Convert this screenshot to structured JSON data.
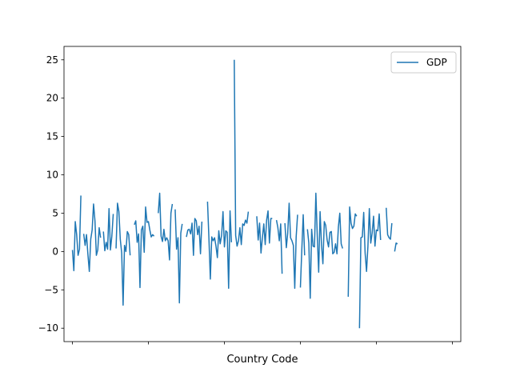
{
  "chart_data": {
    "type": "line",
    "title": "",
    "xlabel": "Country Code",
    "ylabel": "",
    "xlim": [
      -6,
      276
    ],
    "ylim": [
      -11.75,
      26.75
    ],
    "yticks": [
      -10,
      -5,
      0,
      5,
      10,
      15,
      20,
      25
    ],
    "xticks_unlabeled": [
      0,
      54,
      108,
      162,
      216,
      270
    ],
    "grid": false,
    "legend": {
      "placement": "top-right",
      "entries": [
        "GDP"
      ]
    },
    "series": [
      {
        "name": "GDP",
        "color": "#1f77b4",
        "values": [
          0.2,
          -2.5,
          3.9,
          2.2,
          -0.5,
          0.3,
          7.3,
          null,
          2.3,
          0.8,
          2.2,
          -0.4,
          -2.6,
          1.6,
          2.8,
          6.2,
          4.0,
          -0.5,
          0.2,
          3.1,
          1.8,
          null,
          2.6,
          0.1,
          1.2,
          0.3,
          5.6,
          0.2,
          2.0,
          4.9,
          null,
          0.4,
          6.3,
          5.2,
          1.6,
          -0.2,
          -7.0,
          0.8,
          0.0,
          2.6,
          2.2,
          -0.5,
          null,
          null,
          3.5,
          4.0,
          1.2,
          2.3,
          -4.7,
          2.8,
          3.3,
          -0.1,
          5.8,
          3.8,
          3.9,
          2.8,
          1.9,
          2.2,
          2.0,
          null,
          null,
          5.0,
          7.6,
          2.0,
          1.3,
          2.9,
          1.4,
          1.8,
          1.4,
          -1.1,
          5.0,
          6.2,
          null,
          5.5,
          0.3,
          1.8,
          -6.7,
          2.4,
          3.6,
          null,
          null,
          1.9,
          2.8,
          2.9,
          2.3,
          3.7,
          -0.5,
          4.3,
          4.0,
          2.2,
          3.3,
          -0.3,
          3.9,
          null,
          null,
          null,
          6.5,
          1.7,
          -3.6,
          1.9,
          1.4,
          1.8,
          0.7,
          -0.8,
          2.7,
          1.0,
          2.1,
          5.2,
          0.6,
          2.7,
          2.5,
          -4.8,
          5.3,
          1.2,
          null,
          25.0,
          2.1,
          0.7,
          1.4,
          3.1,
          0.9,
          3.6,
          3.4,
          4.1,
          3.7,
          5.2,
          null,
          7.2,
          null,
          null,
          null,
          4.6,
          1.5,
          3.7,
          -0.2,
          1.8,
          3.6,
          0.9,
          4.1,
          5.3,
          1.1,
          4.3,
          4.3,
          null,
          null,
          4.1,
          3.1,
          1.4,
          3.6,
          -2.9,
          null,
          3.7,
          0.5,
          2.4,
          6.3,
          1.8,
          1.4,
          0.8,
          -4.8,
          1.9,
          4.8,
          null,
          -4.7,
          0.2,
          4.8,
          -0.5,
          null,
          2.9,
          1.1,
          -6.1,
          2.9,
          0.7,
          0.6,
          7.6,
          2.0,
          -2.7,
          5.2,
          0.9,
          -1.6,
          3.9,
          3.4,
          1.5,
          0.6,
          2.5,
          2.6,
          -0.3,
          -0.1,
          1.0,
          -0.3,
          3.2,
          5.0,
          1.0,
          0.4,
          null,
          null,
          null,
          -5.9,
          5.8,
          3.7,
          3.0,
          3.3,
          4.9,
          4.6,
          null,
          -10.0,
          1.8,
          1.9,
          5.1,
          -0.2,
          -2.6,
          0.7,
          5.6,
          1.1,
          2.4,
          4.6,
          0.7,
          2.8,
          2.7,
          4.9,
          1.5,
          null,
          null,
          null,
          5.7,
          2.2,
          1.8,
          1.6,
          3.7,
          null,
          0.0,
          1.1,
          1.0
        ]
      }
    ]
  }
}
